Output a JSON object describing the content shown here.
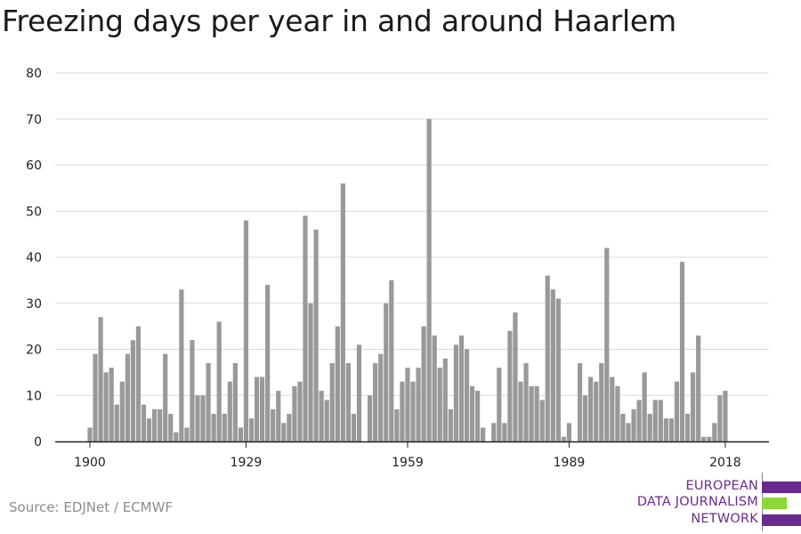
{
  "title": "Freezing days per year in and around Haarlem",
  "source": "Source: EDJNet / ECMWF",
  "logo": {
    "line1": "EUROPEAN",
    "line2": "DATA JOURNALISM",
    "line3": "NETWORK",
    "colors": [
      "#6a2a8e",
      "#8cd636",
      "#6a2a8e"
    ]
  },
  "chart_data": {
    "type": "bar",
    "title": "Freezing days per year in and around Haarlem",
    "xlabel": "",
    "ylabel": "",
    "ylim": [
      0,
      80
    ],
    "yticks": [
      0,
      10,
      20,
      30,
      40,
      50,
      60,
      70,
      80
    ],
    "xtick_labels": [
      "1900",
      "1929",
      "1959",
      "1989",
      "2018"
    ],
    "grid": true,
    "bar_color": "#999999",
    "x": [
      1900,
      1901,
      1902,
      1903,
      1904,
      1905,
      1906,
      1907,
      1908,
      1909,
      1910,
      1911,
      1912,
      1913,
      1914,
      1915,
      1916,
      1917,
      1918,
      1919,
      1920,
      1921,
      1922,
      1923,
      1924,
      1925,
      1926,
      1927,
      1928,
      1929,
      1930,
      1931,
      1932,
      1933,
      1934,
      1935,
      1936,
      1937,
      1938,
      1939,
      1940,
      1941,
      1942,
      1943,
      1944,
      1945,
      1946,
      1947,
      1948,
      1949,
      1950,
      1951,
      1952,
      1953,
      1954,
      1955,
      1956,
      1957,
      1958,
      1959,
      1960,
      1961,
      1962,
      1963,
      1964,
      1965,
      1966,
      1967,
      1968,
      1969,
      1970,
      1971,
      1972,
      1973,
      1974,
      1975,
      1976,
      1977,
      1978,
      1979,
      1980,
      1981,
      1982,
      1983,
      1984,
      1985,
      1986,
      1987,
      1988,
      1989,
      1990,
      1991,
      1992,
      1993,
      1994,
      1995,
      1996,
      1997,
      1998,
      1999,
      2000,
      2001,
      2002,
      2003,
      2004,
      2005,
      2006,
      2007,
      2008,
      2009,
      2010,
      2011,
      2012,
      2013,
      2014,
      2015,
      2016,
      2017,
      2018
    ],
    "values": [
      3,
      19,
      27,
      15,
      16,
      8,
      13,
      19,
      22,
      25,
      8,
      5,
      7,
      7,
      19,
      6,
      2,
      33,
      3,
      22,
      10,
      10,
      17,
      6,
      26,
      6,
      13,
      17,
      3,
      48,
      5,
      14,
      14,
      34,
      7,
      11,
      4,
      6,
      12,
      13,
      49,
      30,
      46,
      11,
      9,
      17,
      25,
      56,
      17,
      6,
      21,
      0,
      10,
      17,
      19,
      30,
      35,
      7,
      13,
      16,
      13,
      16,
      25,
      70,
      23,
      16,
      18,
      7,
      21,
      23,
      20,
      12,
      11,
      3,
      0,
      4,
      16,
      4,
      24,
      28,
      13,
      17,
      12,
      12,
      9,
      36,
      33,
      31,
      1,
      4,
      0,
      17,
      10,
      14,
      13,
      17,
      42,
      14,
      12,
      6,
      4,
      7,
      9,
      15,
      6,
      9,
      9,
      5,
      5,
      13,
      39,
      6,
      15,
      23,
      1,
      1,
      4,
      10,
      11
    ]
  }
}
